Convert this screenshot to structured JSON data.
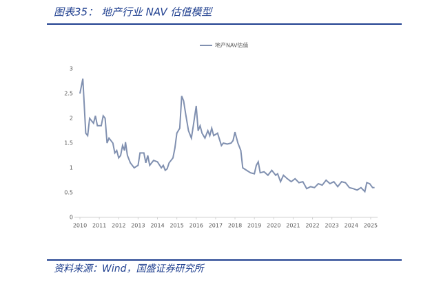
{
  "header": {
    "title": "图表35：  地产行业 NAV 估值模型"
  },
  "chart_data": {
    "type": "line",
    "x": [
      2010.0,
      2010.15,
      2010.3,
      2010.4,
      2010.5,
      2010.7,
      2010.8,
      2010.9,
      2011.1,
      2011.2,
      2011.3,
      2011.4,
      2011.5,
      2011.7,
      2011.8,
      2011.9,
      2012.0,
      2012.1,
      2012.2,
      2012.3,
      2012.35,
      2012.45,
      2012.6,
      2012.8,
      2013.0,
      2013.1,
      2013.3,
      2013.4,
      2013.5,
      2013.6,
      2013.8,
      2014.0,
      2014.2,
      2014.3,
      2014.4,
      2014.5,
      2014.6,
      2014.8,
      2014.9,
      2015.0,
      2015.15,
      2015.25,
      2015.35,
      2015.45,
      2015.6,
      2015.75,
      2015.85,
      2016.0,
      2016.1,
      2016.2,
      2016.3,
      2016.45,
      2016.6,
      2016.7,
      2016.8,
      2016.9,
      2017.1,
      2017.3,
      2017.4,
      2017.6,
      2017.8,
      2017.9,
      2018.0,
      2018.15,
      2018.3,
      2018.4,
      2018.6,
      2018.8,
      2019.0,
      2019.1,
      2019.2,
      2019.3,
      2019.5,
      2019.7,
      2019.9,
      2020.1,
      2020.2,
      2020.35,
      2020.5,
      2020.7,
      2020.9,
      2021.1,
      2021.3,
      2021.5,
      2021.7,
      2021.9,
      2022.1,
      2022.3,
      2022.5,
      2022.7,
      2022.9,
      2023.1,
      2023.3,
      2023.5,
      2023.7,
      2023.9,
      2024.1,
      2024.3,
      2024.5,
      2024.7,
      2024.8,
      2024.95,
      2025.1,
      2025.2
    ],
    "series": [
      {
        "name": "地产NAV估值",
        "color": "#8090b0",
        "values": [
          2.5,
          2.8,
          1.7,
          1.65,
          2.0,
          1.9,
          2.05,
          1.85,
          1.85,
          2.05,
          2.0,
          1.5,
          1.6,
          1.5,
          1.3,
          1.35,
          1.2,
          1.25,
          1.45,
          1.35,
          1.52,
          1.25,
          1.1,
          1.0,
          1.05,
          1.3,
          1.3,
          1.1,
          1.25,
          1.05,
          1.15,
          1.12,
          1.0,
          1.05,
          0.95,
          0.98,
          1.1,
          1.2,
          1.4,
          1.7,
          1.8,
          2.45,
          2.35,
          2.1,
          1.75,
          1.6,
          1.85,
          2.25,
          1.75,
          1.85,
          1.7,
          1.6,
          1.75,
          1.65,
          1.8,
          1.65,
          1.7,
          1.45,
          1.5,
          1.48,
          1.5,
          1.55,
          1.72,
          1.5,
          1.35,
          1.0,
          0.95,
          0.9,
          0.88,
          1.05,
          1.12,
          0.9,
          0.92,
          0.85,
          0.95,
          0.85,
          0.88,
          0.72,
          0.85,
          0.78,
          0.72,
          0.78,
          0.7,
          0.72,
          0.58,
          0.62,
          0.6,
          0.68,
          0.65,
          0.75,
          0.68,
          0.72,
          0.62,
          0.72,
          0.7,
          0.6,
          0.58,
          0.55,
          0.6,
          0.52,
          0.7,
          0.68,
          0.6,
          0.6
        ]
      }
    ],
    "xlim": [
      2010,
      2025.3
    ],
    "xticks": [
      2010,
      2011,
      2012,
      2013,
      2014,
      2015,
      2016,
      2017,
      2018,
      2019,
      2020,
      2021,
      2022,
      2023,
      2024,
      2025
    ],
    "ylim": [
      0,
      3
    ],
    "yticks": [
      0,
      {
        "value": 0.5,
        "label": "0.5"
      },
      1,
      {
        "value": 1.5,
        "label": "1.5"
      },
      2,
      {
        "value": 2.5,
        "label": "2.5"
      },
      3
    ]
  },
  "footer": {
    "source": "资料来源：Wind，国盛证券研究所"
  }
}
